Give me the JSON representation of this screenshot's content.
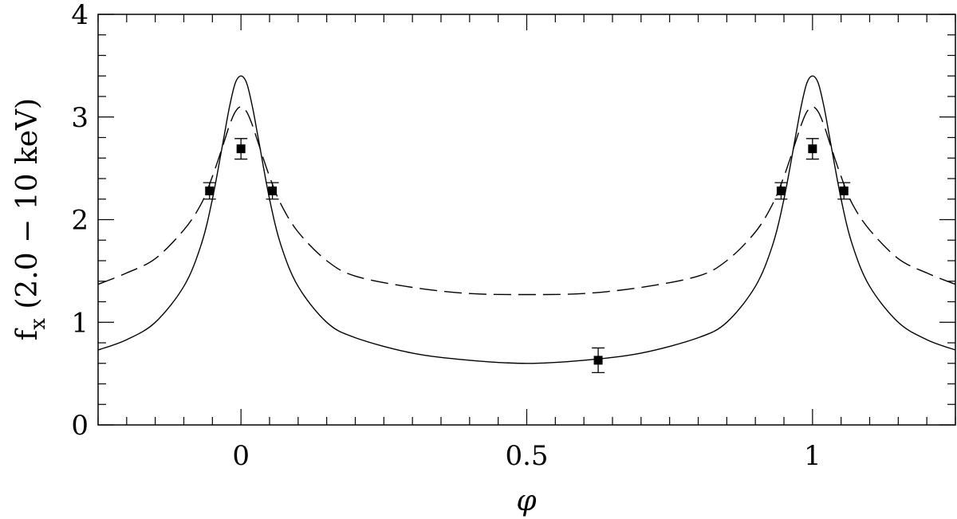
{
  "chart_data": {
    "type": "line",
    "xlabel": "φ",
    "ylabel": "f",
    "ylabel_sub": "x",
    "ylabel_rest": " (2.0 − 10 keV)",
    "xlim": [
      -0.25,
      1.25
    ],
    "ylim": [
      0,
      4
    ],
    "x_ticks": [
      {
        "value": 0,
        "label": "0"
      },
      {
        "value": 0.5,
        "label": "0.5"
      },
      {
        "value": 1,
        "label": "1"
      }
    ],
    "y_ticks": [
      {
        "value": 0,
        "label": "0"
      },
      {
        "value": 1,
        "label": "1"
      },
      {
        "value": 2,
        "label": "2"
      },
      {
        "value": 3,
        "label": "3"
      },
      {
        "value": 4,
        "label": "4"
      }
    ],
    "x_minor_step": 0.05,
    "y_minor_step": 0.2,
    "grid": false,
    "series": [
      {
        "style": "solid",
        "x": [
          -0.25,
          -0.2,
          -0.15,
          -0.1,
          -0.07,
          -0.05,
          -0.03,
          -0.02,
          -0.01,
          0,
          0.01,
          0.02,
          0.03,
          0.05,
          0.07,
          0.1,
          0.15,
          0.2,
          0.3,
          0.4,
          0.5,
          0.6,
          0.7,
          0.8,
          0.85,
          0.9,
          0.93,
          0.95,
          0.97,
          0.98,
          0.99,
          1,
          1.01,
          1.02,
          1.03,
          1.05,
          1.07,
          1.1,
          1.15,
          1.2,
          1.25
        ],
        "y": [
          0.73,
          0.83,
          1.0,
          1.35,
          1.75,
          2.2,
          2.8,
          3.1,
          3.33,
          3.4,
          3.33,
          3.1,
          2.8,
          2.2,
          1.75,
          1.35,
          1.0,
          0.85,
          0.7,
          0.63,
          0.6,
          0.63,
          0.7,
          0.85,
          1.0,
          1.35,
          1.75,
          2.2,
          2.8,
          3.1,
          3.33,
          3.4,
          3.33,
          3.1,
          2.8,
          2.2,
          1.75,
          1.35,
          1.0,
          0.83,
          0.73
        ]
      },
      {
        "style": "dashed",
        "x": [
          -0.25,
          -0.2,
          -0.15,
          -0.1,
          -0.07,
          -0.05,
          -0.03,
          -0.02,
          -0.01,
          0,
          0.01,
          0.02,
          0.03,
          0.05,
          0.07,
          0.1,
          0.15,
          0.2,
          0.3,
          0.4,
          0.5,
          0.6,
          0.7,
          0.8,
          0.85,
          0.9,
          0.93,
          0.95,
          0.97,
          0.98,
          0.99,
          1,
          1.01,
          1.02,
          1.03,
          1.05,
          1.07,
          1.1,
          1.15,
          1.2,
          1.25
        ],
        "y": [
          1.37,
          1.48,
          1.62,
          1.9,
          2.15,
          2.42,
          2.75,
          2.92,
          3.05,
          3.1,
          3.05,
          2.92,
          2.75,
          2.42,
          2.15,
          1.88,
          1.6,
          1.45,
          1.34,
          1.28,
          1.27,
          1.28,
          1.34,
          1.45,
          1.6,
          1.88,
          2.15,
          2.42,
          2.75,
          2.92,
          3.05,
          3.1,
          3.05,
          2.92,
          2.75,
          2.42,
          2.15,
          1.9,
          1.62,
          1.48,
          1.37
        ]
      }
    ],
    "points": [
      {
        "x": -0.055,
        "y": 2.28,
        "err": 0.08
      },
      {
        "x": 0.0,
        "y": 2.69,
        "err": 0.1
      },
      {
        "x": 0.055,
        "y": 2.28,
        "err": 0.08
      },
      {
        "x": 0.625,
        "y": 0.63,
        "err": 0.12
      },
      {
        "x": 0.945,
        "y": 2.28,
        "err": 0.08
      },
      {
        "x": 1.0,
        "y": 2.69,
        "err": 0.1
      },
      {
        "x": 1.055,
        "y": 2.28,
        "err": 0.08
      }
    ]
  }
}
